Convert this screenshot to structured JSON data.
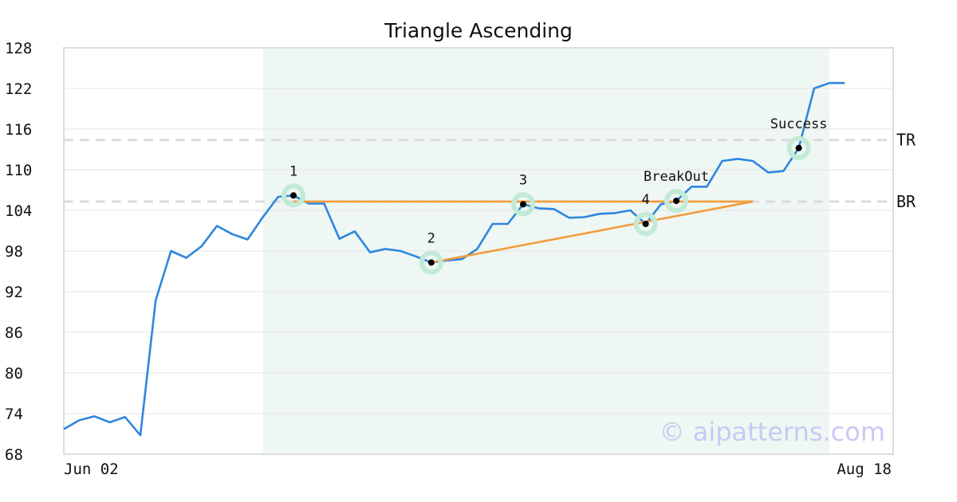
{
  "chart_data": {
    "type": "line",
    "title": "Triangle Ascending",
    "xlabel": "",
    "ylabel": "",
    "ylim": [
      68,
      128
    ],
    "yticks": [
      68,
      74,
      80,
      86,
      92,
      98,
      104,
      110,
      116,
      122,
      128
    ],
    "x_tick_labels": [
      "Jun 02",
      "Aug 18"
    ],
    "grid": "horizontal",
    "pattern_window": {
      "from_index": 13,
      "to_index": 50
    },
    "series": [
      {
        "color": "#2e86de",
        "values": [
          71.7,
          73.0,
          73.6,
          72.7,
          73.5,
          70.8,
          90.7,
          98.0,
          97.0,
          98.7,
          101.7,
          100.5,
          99.7,
          103.0,
          106.0,
          106.2,
          105.0,
          105.0,
          99.8,
          100.9,
          97.8,
          98.3,
          98.0,
          97.2,
          96.3,
          96.6,
          96.8,
          98.3,
          102.0,
          102.0,
          104.9,
          104.3,
          104.2,
          102.9,
          103.0,
          103.5,
          103.6,
          104.0,
          102.0,
          104.9,
          105.4,
          107.5,
          107.5,
          111.3,
          111.6,
          111.3,
          109.6,
          109.8,
          113.2,
          122.0,
          122.8,
          122.8
        ]
      }
    ],
    "levels": [
      {
        "label": "TR",
        "value": 114.4
      },
      {
        "label": "BR",
        "value": 105.3
      }
    ],
    "trendlines": [
      {
        "color": "#f39c3c",
        "x1": 15,
        "y1": 105.3,
        "x2": 45,
        "y2": 105.3
      },
      {
        "color": "#f39c3c",
        "x1": 24,
        "y1": 96.3,
        "x2": 45,
        "y2": 105.3
      }
    ],
    "points": [
      {
        "label": "1",
        "x": 15,
        "y": 106.2
      },
      {
        "label": "2",
        "x": 24,
        "y": 96.3
      },
      {
        "label": "3",
        "x": 30,
        "y": 104.9
      },
      {
        "label": "4",
        "x": 38,
        "y": 102.0
      },
      {
        "label": "BreakOut",
        "x": 40,
        "y": 105.4
      },
      {
        "label": "Success",
        "x": 48,
        "y": 113.2
      }
    ],
    "watermark": "© aipatterns.com",
    "colors": {
      "line": "#2e86de",
      "trend": "#f39c3c",
      "marker_ring": "#c2ead6",
      "window": "#eef7f3"
    }
  }
}
